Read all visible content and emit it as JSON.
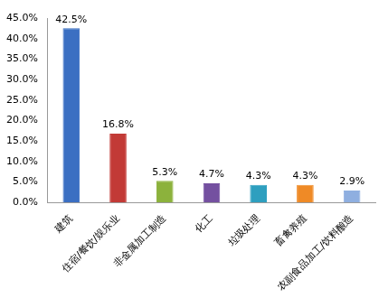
{
  "chart_data": {
    "type": "bar",
    "categories": [
      "建筑",
      "住宿/餐饮/娱乐业",
      "非金属加工制造",
      "化工",
      "垃圾处理",
      "畜禽养殖",
      "农副食品加工/饮料酿造"
    ],
    "values": [
      42.5,
      16.8,
      5.3,
      4.7,
      4.3,
      4.3,
      2.9
    ],
    "value_labels": [
      "42.5%",
      "16.8%",
      "5.3%",
      "4.7%",
      "4.3%",
      "4.3%",
      "2.9%"
    ],
    "colors": [
      "#3b6fc2",
      "#c23a36",
      "#8cb23c",
      "#7450a0",
      "#2e9fbf",
      "#ef8a26",
      "#8fafe0"
    ],
    "ylim": [
      0,
      45
    ],
    "yticks": [
      {
        "value": 0,
        "label": "0.0%"
      },
      {
        "value": 5,
        "label": "5.0%"
      },
      {
        "value": 10,
        "label": "10.0%"
      },
      {
        "value": 15,
        "label": "15.0%"
      },
      {
        "value": 20,
        "label": "20.0%"
      },
      {
        "value": 25,
        "label": "25.0%"
      },
      {
        "value": 30,
        "label": "30.0%"
      },
      {
        "value": 35,
        "label": "35.0%"
      },
      {
        "value": 40,
        "label": "40.0%"
      },
      {
        "value": 45,
        "label": "45.0%"
      }
    ],
    "grid": false,
    "data_labels": true
  }
}
